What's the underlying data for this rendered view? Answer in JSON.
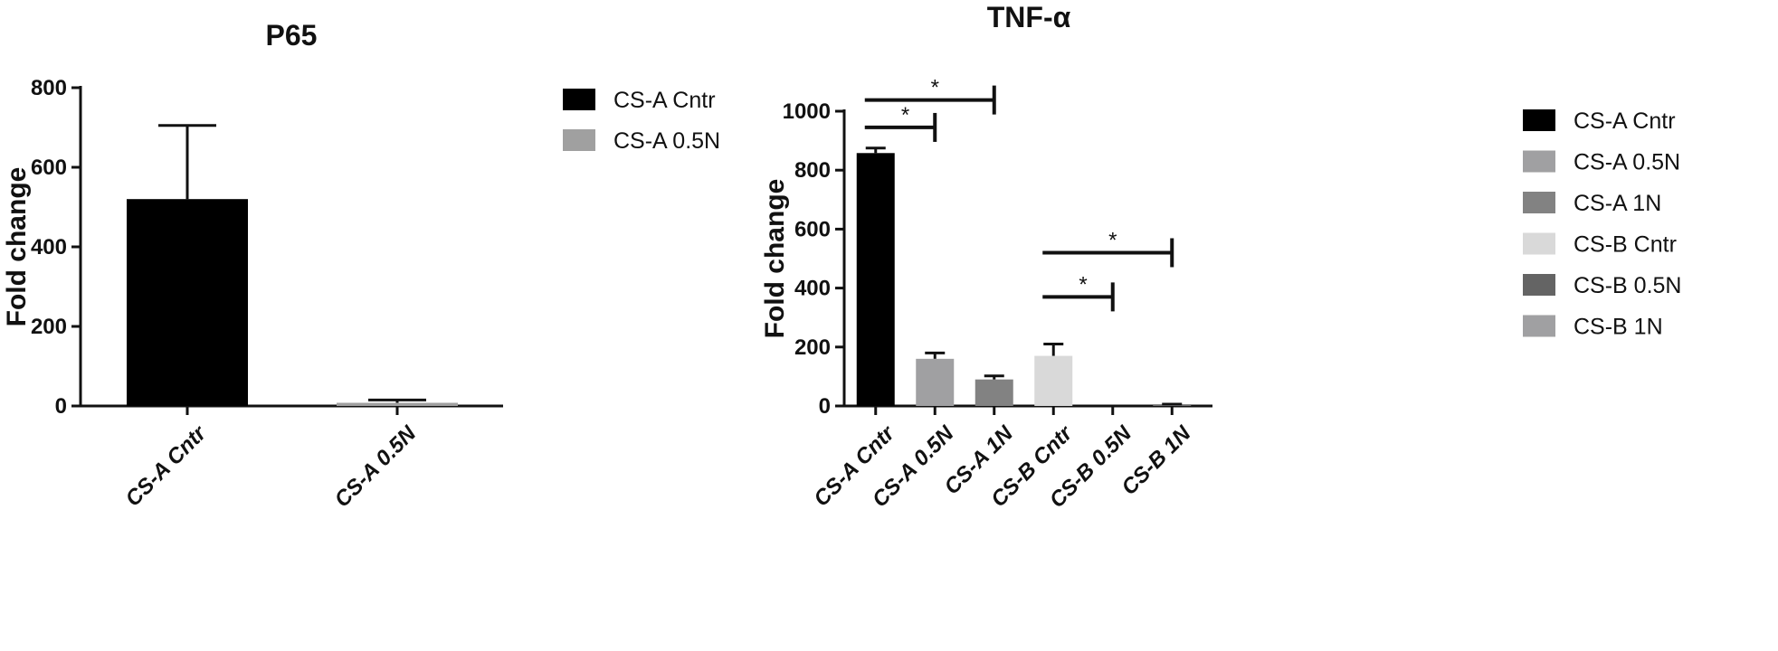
{
  "chart_data": [
    {
      "type": "bar",
      "title": "P65",
      "xlabel": "",
      "ylabel": "Fold change",
      "ylim": [
        0,
        800
      ],
      "yticks": [
        "0",
        "200",
        "400",
        "600",
        "800"
      ],
      "categories": [
        "CS-A Cntr",
        "CS-A 0.5N"
      ],
      "values": [
        520,
        8
      ],
      "error_upper": [
        705,
        15
      ],
      "colors": [
        "#000000",
        "#a0a0a0"
      ],
      "legend": {
        "position": "right",
        "entries": [
          {
            "label": "CS-A Cntr",
            "color": "#000000"
          },
          {
            "label": "CS-A 0.5N",
            "color": "#a0a0a0"
          }
        ]
      },
      "grid": false
    },
    {
      "type": "bar",
      "title": "TNF-α",
      "xlabel": "",
      "ylabel": "Fold change",
      "ylim": [
        0,
        1000
      ],
      "yticks": [
        "0",
        "200",
        "400",
        "600",
        "800",
        "1000"
      ],
      "categories": [
        "CS-A Cntr",
        "CS-A 0.5N",
        "CS-A 1N",
        "CS-B Cntr",
        "CS-B 0.5N",
        "CS-B 1N"
      ],
      "values": [
        858,
        160,
        90,
        170,
        0,
        2
      ],
      "error_upper": [
        875,
        180,
        102,
        210,
        0,
        6
      ],
      "colors": [
        "#000000",
        "#a0a0a2",
        "#828282",
        "#d9d9d9",
        "#646464",
        "#a0a0a2"
      ],
      "legend": {
        "position": "right",
        "entries": [
          {
            "label": "CS-A Cntr",
            "color": "#000000"
          },
          {
            "label": "CS-A 0.5N",
            "color": "#a0a0a2"
          },
          {
            "label": "CS-A 1N",
            "color": "#828282"
          },
          {
            "label": "CS-B Cntr",
            "color": "#d9d9d9"
          },
          {
            "label": "CS-B 0.5N",
            "color": "#646464"
          },
          {
            "label": "CS-B 1N",
            "color": "#a0a0a2"
          }
        ]
      },
      "significance": [
        {
          "from": "CS-A Cntr",
          "to": "CS-A 1N",
          "level": 1038,
          "label": "*"
        },
        {
          "from": "CS-A Cntr",
          "to": "CS-A 0.5N",
          "level": 945,
          "label": "*"
        },
        {
          "from": "CS-B Cntr",
          "to": "CS-B 1N",
          "level": 520,
          "label": "*"
        },
        {
          "from": "CS-B Cntr",
          "to": "CS-B 0.5N",
          "level": 370,
          "label": "*"
        }
      ],
      "grid": false
    }
  ]
}
